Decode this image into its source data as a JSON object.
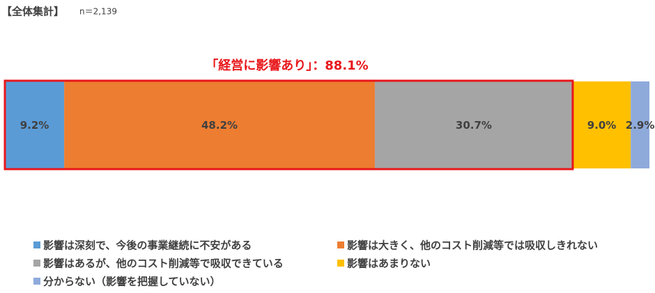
{
  "chart_data": {
    "type": "bar",
    "orientation": "horizontal",
    "stacked": true,
    "title": "【全体集計】",
    "subtitle": "n＝2,139",
    "annotation": "「経営に影響あり」：88.1%",
    "xlim": [
      0,
      100
    ],
    "legend": "bottom",
    "series": [
      {
        "name": "影響は深刻で、今後の事業継続に不安がある",
        "color": "#5b9bd5",
        "values": [
          9.2
        ],
        "value_labels": [
          "9.2%"
        ]
      },
      {
        "name": "影響は大きく、他のコスト削減等では吸収しきれない",
        "color": "#ed7d31",
        "values": [
          48.2
        ],
        "value_labels": [
          "48.2%"
        ]
      },
      {
        "name": "影響はあるが、他のコスト削減等で吸収できている",
        "color": "#a5a5a5",
        "values": [
          30.7
        ],
        "value_labels": [
          "30.7%"
        ]
      },
      {
        "name": "影響はあまりない",
        "color": "#ffc000",
        "values": [
          9.0
        ],
        "value_labels": [
          "9.0%"
        ]
      },
      {
        "name": "分からない（影響を把握していない）",
        "color": "#8eaadb",
        "values": [
          2.9
        ],
        "value_labels": [
          "2.9%"
        ]
      }
    ]
  }
}
